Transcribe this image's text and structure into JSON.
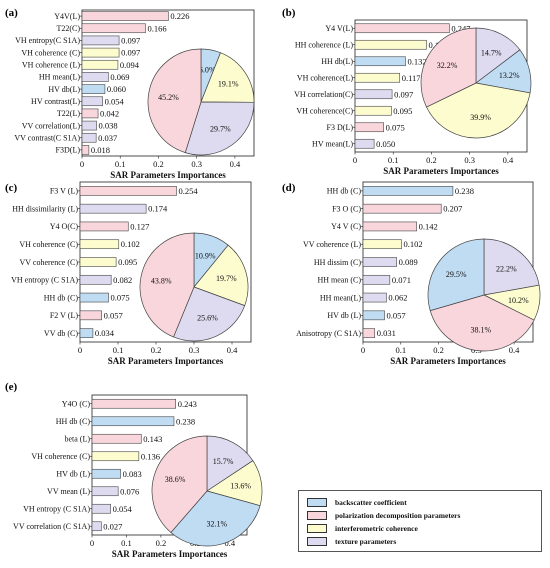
{
  "colors": {
    "backscatter": "#bfdcf3",
    "polarization": "#f9d6dc",
    "interferometric": "#fdfccf",
    "texture": "#dedbf0",
    "outline": "#444444"
  },
  "legend": [
    {
      "key": "backscatter",
      "label": "backscatter coefficient"
    },
    {
      "key": "polarization",
      "label": "polarization decomposition parameters"
    },
    {
      "key": "interferometric",
      "label": "interferometric coherence"
    },
    {
      "key": "texture",
      "label": "texture parameters"
    }
  ],
  "chart_data": [
    {
      "panel": "(a)",
      "type": "bar",
      "xlabel": "SAR Parameters Importances",
      "xlim": [
        0,
        0.45
      ],
      "xticks": [
        "0",
        "0.1",
        "0.2",
        "0.3",
        "0.4"
      ],
      "bars": [
        {
          "label": "Y4V(L)",
          "value": 0.226,
          "text": "0.226",
          "cat": "polarization"
        },
        {
          "label": "T22(C)",
          "value": 0.166,
          "text": "0.166",
          "cat": "polarization"
        },
        {
          "label": "VH entropy(C S1A)",
          "value": 0.097,
          "text": "0.097",
          "cat": "texture"
        },
        {
          "label": "VH coherence (C)",
          "value": 0.097,
          "text": "0.097",
          "cat": "interferometric"
        },
        {
          "label": "VH coherence (L)",
          "value": 0.094,
          "text": "0.094",
          "cat": "interferometric"
        },
        {
          "label": "HH mean(L)",
          "value": 0.069,
          "text": "0.069",
          "cat": "texture"
        },
        {
          "label": "HV db(L)",
          "value": 0.06,
          "text": "0.060",
          "cat": "backscatter"
        },
        {
          "label": "HV contrast(L)",
          "value": 0.054,
          "text": "0.054",
          "cat": "texture"
        },
        {
          "label": "T22(L)",
          "value": 0.042,
          "text": "0.042",
          "cat": "polarization"
        },
        {
          "label": "VV correlation(L)",
          "value": 0.038,
          "text": "0.038",
          "cat": "texture"
        },
        {
          "label": "VV contrast(C S1A)",
          "value": 0.037,
          "text": "0.037",
          "cat": "texture"
        },
        {
          "label": "F3D(L)",
          "value": 0.018,
          "text": "0.018",
          "cat": "polarization"
        }
      ],
      "pie": [
        {
          "cat": "backscatter",
          "value": 6.0,
          "text": "6.0%"
        },
        {
          "cat": "interferometric",
          "value": 19.1,
          "text": "19.1%"
        },
        {
          "cat": "texture",
          "value": 29.7,
          "text": "29.7%"
        },
        {
          "cat": "polarization",
          "value": 45.2,
          "text": "45.2%"
        }
      ]
    },
    {
      "panel": "(b)",
      "type": "bar",
      "xlabel": "SAR Parameters Importances",
      "xlim": [
        0,
        0.45
      ],
      "xticks": [
        "0",
        "0.1",
        "0.2",
        "0.3",
        "0.4"
      ],
      "bars": [
        {
          "label": "Y4 V(L)",
          "value": 0.247,
          "text": "0.247",
          "cat": "polarization"
        },
        {
          "label": "HH  coherence (L)",
          "value": 0.187,
          "text": "0.187",
          "cat": "interferometric"
        },
        {
          "label": "HH db(L)",
          "value": 0.132,
          "text": "0.132",
          "cat": "backscatter"
        },
        {
          "label": "VH coherence(L)",
          "value": 0.117,
          "text": "0.117",
          "cat": "interferometric"
        },
        {
          "label": "VH correlation(C)",
          "value": 0.097,
          "text": "0.097",
          "cat": "texture"
        },
        {
          "label": "VH  coherence(C)",
          "value": 0.095,
          "text": "0.095",
          "cat": "interferometric"
        },
        {
          "label": "F3 D(L)",
          "value": 0.075,
          "text": "0.075",
          "cat": "polarization"
        },
        {
          "label": "HV mean(L)",
          "value": 0.05,
          "text": "0.050",
          "cat": "texture"
        }
      ],
      "pie": [
        {
          "cat": "texture",
          "value": 14.7,
          "text": "14.7%"
        },
        {
          "cat": "backscatter",
          "value": 13.2,
          "text": "13.2%"
        },
        {
          "cat": "interferometric",
          "value": 39.9,
          "text": "39.9%"
        },
        {
          "cat": "polarization",
          "value": 32.2,
          "text": "32.2%"
        }
      ]
    },
    {
      "panel": "(c)",
      "type": "bar",
      "xlabel": "SAR Parameters Importances",
      "xlim": [
        0,
        0.45
      ],
      "xticks": [
        "0",
        "0.1",
        "0.2",
        "0.3",
        "0.4"
      ],
      "bars": [
        {
          "label": "F3 V (L)",
          "value": 0.254,
          "text": "0.254",
          "cat": "polarization"
        },
        {
          "label": "HH dissimilarity (L)",
          "value": 0.174,
          "text": "0.174",
          "cat": "texture"
        },
        {
          "label": "Y4 O(C)",
          "value": 0.127,
          "text": "0.127",
          "cat": "polarization"
        },
        {
          "label": "VH coherence (C)",
          "value": 0.102,
          "text": "0.102",
          "cat": "interferometric"
        },
        {
          "label": "VV coherence (C)",
          "value": 0.095,
          "text": "0.095",
          "cat": "interferometric"
        },
        {
          "label": "VH entropy (C S1A)",
          "value": 0.082,
          "text": "0.082",
          "cat": "texture"
        },
        {
          "label": "HH db (C)",
          "value": 0.075,
          "text": "0.075",
          "cat": "backscatter"
        },
        {
          "label": "F2 V (L)",
          "value": 0.057,
          "text": "0.057",
          "cat": "polarization"
        },
        {
          "label": "VV db (C)",
          "value": 0.034,
          "text": "0.034",
          "cat": "backscatter"
        }
      ],
      "pie": [
        {
          "cat": "backscatter",
          "value": 10.9,
          "text": "10.9%"
        },
        {
          "cat": "interferometric",
          "value": 19.7,
          "text": "19.7%"
        },
        {
          "cat": "texture",
          "value": 25.6,
          "text": "25.6%"
        },
        {
          "cat": "polarization",
          "value": 43.8,
          "text": "43.8%"
        }
      ]
    },
    {
      "panel": "(d)",
      "type": "bar",
      "xlabel": "SAR Parameters Importances",
      "xlim": [
        0,
        0.45
      ],
      "xticks": [
        "0",
        "0.1",
        "0.2",
        "0.3",
        "0.4"
      ],
      "bars": [
        {
          "label": "HH db (C)",
          "value": 0.238,
          "text": "0.238",
          "cat": "backscatter"
        },
        {
          "label": "F3 O (C)",
          "value": 0.207,
          "text": "0.207",
          "cat": "polarization"
        },
        {
          "label": "Y4 V (C)",
          "value": 0.142,
          "text": "0.142",
          "cat": "polarization"
        },
        {
          "label": "VV coherence (L)",
          "value": 0.102,
          "text": "0.102",
          "cat": "interferometric"
        },
        {
          "label": "HH dissim (C)",
          "value": 0.089,
          "text": "0.089",
          "cat": "texture"
        },
        {
          "label": "HH mean (C)",
          "value": 0.071,
          "text": "0.071",
          "cat": "texture"
        },
        {
          "label": "HH mean(L)",
          "value": 0.062,
          "text": "0.062",
          "cat": "texture"
        },
        {
          "label": "HV db (L)",
          "value": 0.057,
          "text": "0.057",
          "cat": "backscatter"
        },
        {
          "label": "Anisotropy (C S1A)",
          "value": 0.031,
          "text": "0.031",
          "cat": "polarization"
        }
      ],
      "pie": [
        {
          "cat": "texture",
          "value": 22.2,
          "text": "22.2%"
        },
        {
          "cat": "interferometric",
          "value": 10.2,
          "text": "10.2%"
        },
        {
          "cat": "polarization",
          "value": 38.1,
          "text": "38.1%"
        },
        {
          "cat": "backscatter",
          "value": 29.5,
          "text": "29.5%"
        }
      ]
    },
    {
      "panel": "(e)",
      "type": "bar",
      "xlabel": "SAR Parameters Importances",
      "xlim": [
        0,
        0.45
      ],
      "xticks": [
        "0",
        "0.1",
        "0.2",
        "0.3",
        "0.4"
      ],
      "bars": [
        {
          "label": "Y4O (C)",
          "value": 0.243,
          "text": "0.243",
          "cat": "polarization"
        },
        {
          "label": "HH  db (C)",
          "value": 0.238,
          "text": "0.238",
          "cat": "backscatter"
        },
        {
          "label": "beta (L)",
          "value": 0.143,
          "text": "0.143",
          "cat": "polarization"
        },
        {
          "label": "VH coherence  (C)",
          "value": 0.136,
          "text": "0.136",
          "cat": "interferometric"
        },
        {
          "label": "HV db (L)",
          "value": 0.083,
          "text": "0.083",
          "cat": "backscatter"
        },
        {
          "label": "VV mean (L)",
          "value": 0.076,
          "text": "0.076",
          "cat": "texture"
        },
        {
          "label": "VH entropy (C S1A)",
          "value": 0.054,
          "text": "0.054",
          "cat": "texture"
        },
        {
          "label": "VV correlation (C S1A)",
          "value": 0.027,
          "text": "0.027",
          "cat": "texture"
        }
      ],
      "pie": [
        {
          "cat": "texture",
          "value": 15.7,
          "text": "15.7%"
        },
        {
          "cat": "interferometric",
          "value": 13.6,
          "text": "13.6%"
        },
        {
          "cat": "backscatter",
          "value": 32.1,
          "text": "32.1%"
        },
        {
          "cat": "polarization",
          "value": 38.6,
          "text": "38.6%"
        }
      ]
    }
  ]
}
